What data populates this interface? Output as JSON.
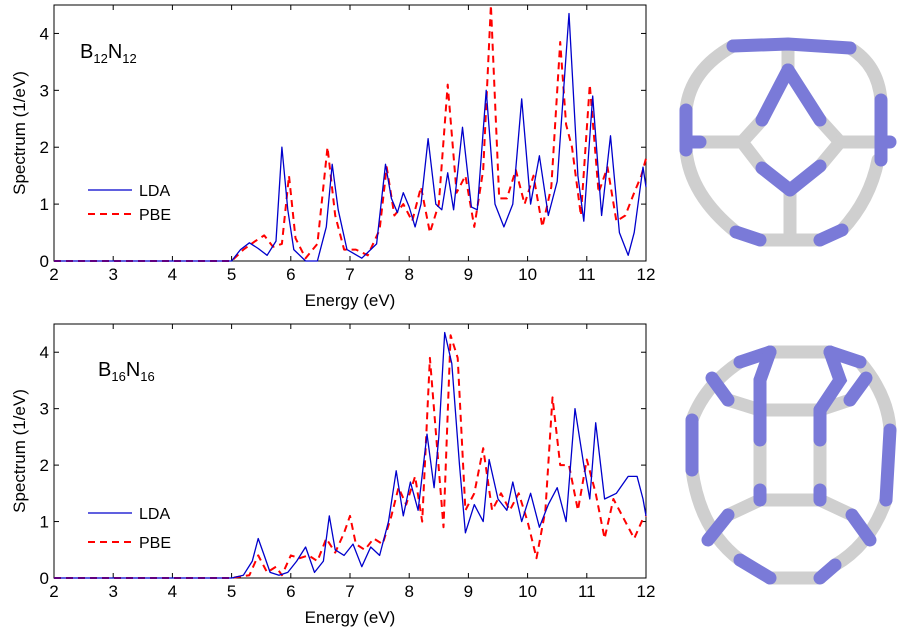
{
  "chart_data": [
    {
      "type": "line",
      "annotation": {
        "main1": "B",
        "sub1": "12",
        "main2": "N",
        "sub2": "12"
      },
      "xlabel": "Energy (eV)",
      "ylabel": "Spectrum (1/eV)",
      "xlim": [
        2,
        12
      ],
      "ylim": [
        0,
        4.5
      ],
      "x_ticks": [
        2,
        3,
        4,
        5,
        6,
        7,
        8,
        9,
        10,
        11,
        12
      ],
      "y_ticks": [
        0,
        1,
        2,
        3,
        4
      ],
      "legend_position": "left-middle",
      "series": [
        {
          "name": "LDA",
          "color": "#0000cc",
          "dash": "solid",
          "points": [
            [
              2,
              0
            ],
            [
              5.0,
              0
            ],
            [
              5.15,
              0.2
            ],
            [
              5.3,
              0.32
            ],
            [
              5.45,
              0.22
            ],
            [
              5.6,
              0.1
            ],
            [
              5.75,
              0.35
            ],
            [
              5.85,
              2.0
            ],
            [
              5.95,
              0.9
            ],
            [
              6.05,
              0.2
            ],
            [
              6.25,
              0
            ],
            [
              6.45,
              0
            ],
            [
              6.6,
              0.6
            ],
            [
              6.7,
              1.7
            ],
            [
              6.8,
              0.9
            ],
            [
              6.95,
              0.2
            ],
            [
              7.2,
              0.05
            ],
            [
              7.45,
              0.3
            ],
            [
              7.6,
              1.7
            ],
            [
              7.7,
              1.1
            ],
            [
              7.8,
              0.85
            ],
            [
              7.9,
              1.2
            ],
            [
              8.0,
              0.95
            ],
            [
              8.1,
              0.6
            ],
            [
              8.2,
              1.0
            ],
            [
              8.32,
              2.15
            ],
            [
              8.45,
              1.0
            ],
            [
              8.55,
              0.9
            ],
            [
              8.65,
              1.55
            ],
            [
              8.75,
              0.9
            ],
            [
              8.9,
              2.35
            ],
            [
              9.05,
              0.95
            ],
            [
              9.15,
              0.9
            ],
            [
              9.3,
              3.0
            ],
            [
              9.45,
              1.0
            ],
            [
              9.6,
              0.6
            ],
            [
              9.75,
              1.0
            ],
            [
              9.9,
              2.85
            ],
            [
              10.05,
              1.0
            ],
            [
              10.2,
              1.85
            ],
            [
              10.35,
              0.8
            ],
            [
              10.5,
              1.4
            ],
            [
              10.7,
              4.35
            ],
            [
              10.85,
              1.5
            ],
            [
              10.95,
              0.7
            ],
            [
              11.1,
              2.9
            ],
            [
              11.25,
              0.8
            ],
            [
              11.4,
              2.2
            ],
            [
              11.55,
              0.5
            ],
            [
              11.7,
              0.1
            ],
            [
              11.8,
              0.5
            ],
            [
              11.95,
              1.65
            ],
            [
              12.0,
              1.3
            ]
          ]
        },
        {
          "name": "PBE",
          "color": "#ff0000",
          "dash": "dashed",
          "points": [
            [
              2,
              0
            ],
            [
              5.0,
              0
            ],
            [
              5.2,
              0.2
            ],
            [
              5.4,
              0.35
            ],
            [
              5.55,
              0.45
            ],
            [
              5.7,
              0.25
            ],
            [
              5.85,
              0.3
            ],
            [
              5.97,
              1.5
            ],
            [
              6.08,
              0.4
            ],
            [
              6.25,
              0.05
            ],
            [
              6.45,
              0.3
            ],
            [
              6.62,
              2.0
            ],
            [
              6.75,
              0.8
            ],
            [
              6.9,
              0.2
            ],
            [
              7.1,
              0.2
            ],
            [
              7.3,
              0.1
            ],
            [
              7.5,
              0.55
            ],
            [
              7.62,
              1.65
            ],
            [
              7.75,
              0.8
            ],
            [
              7.9,
              1.0
            ],
            [
              8.05,
              0.7
            ],
            [
              8.2,
              1.3
            ],
            [
              8.35,
              0.5
            ],
            [
              8.5,
              1.0
            ],
            [
              8.65,
              3.1
            ],
            [
              8.8,
              1.2
            ],
            [
              8.95,
              1.5
            ],
            [
              9.1,
              0.6
            ],
            [
              9.25,
              1.6
            ],
            [
              9.38,
              4.5
            ],
            [
              9.52,
              1.1
            ],
            [
              9.65,
              1.1
            ],
            [
              9.8,
              1.6
            ],
            [
              9.95,
              1.0
            ],
            [
              10.1,
              1.5
            ],
            [
              10.25,
              0.6
            ],
            [
              10.4,
              1.3
            ],
            [
              10.55,
              3.85
            ],
            [
              10.65,
              2.4
            ],
            [
              10.75,
              2.0
            ],
            [
              10.9,
              0.8
            ],
            [
              11.05,
              3.1
            ],
            [
              11.2,
              1.2
            ],
            [
              11.35,
              1.65
            ],
            [
              11.5,
              0.7
            ],
            [
              11.65,
              0.8
            ],
            [
              11.8,
              1.2
            ],
            [
              11.92,
              1.5
            ],
            [
              12.0,
              1.8
            ]
          ]
        }
      ]
    },
    {
      "type": "line",
      "annotation": {
        "main1": "B",
        "sub1": "16",
        "main2": "N",
        "sub2": "16"
      },
      "xlabel": "Energy (eV)",
      "ylabel": "Spectrum (1/eV)",
      "xlim": [
        2,
        12
      ],
      "ylim": [
        0,
        4.5
      ],
      "x_ticks": [
        2,
        3,
        4,
        5,
        6,
        7,
        8,
        9,
        10,
        11,
        12
      ],
      "y_ticks": [
        0,
        1,
        2,
        3,
        4
      ],
      "legend_position": "left-middle",
      "series": [
        {
          "name": "LDA",
          "color": "#0000cc",
          "dash": "solid",
          "points": [
            [
              2,
              0
            ],
            [
              5.0,
              0
            ],
            [
              5.2,
              0.05
            ],
            [
              5.35,
              0.3
            ],
            [
              5.45,
              0.7
            ],
            [
              5.55,
              0.4
            ],
            [
              5.65,
              0.1
            ],
            [
              5.8,
              0.05
            ],
            [
              5.95,
              0.1
            ],
            [
              6.1,
              0.3
            ],
            [
              6.25,
              0.55
            ],
            [
              6.4,
              0.1
            ],
            [
              6.55,
              0.3
            ],
            [
              6.65,
              1.1
            ],
            [
              6.75,
              0.5
            ],
            [
              6.9,
              0.4
            ],
            [
              7.05,
              0.6
            ],
            [
              7.2,
              0.2
            ],
            [
              7.35,
              0.55
            ],
            [
              7.5,
              0.4
            ],
            [
              7.65,
              1.0
            ],
            [
              7.78,
              1.9
            ],
            [
              7.9,
              1.1
            ],
            [
              8.02,
              1.7
            ],
            [
              8.15,
              1.2
            ],
            [
              8.3,
              2.55
            ],
            [
              8.42,
              1.6
            ],
            [
              8.5,
              2.5
            ],
            [
              8.6,
              4.35
            ],
            [
              8.72,
              3.8
            ],
            [
              8.85,
              2.0
            ],
            [
              8.95,
              0.8
            ],
            [
              9.1,
              1.3
            ],
            [
              9.25,
              1.0
            ],
            [
              9.35,
              2.1
            ],
            [
              9.5,
              1.4
            ],
            [
              9.65,
              1.2
            ],
            [
              9.75,
              1.7
            ],
            [
              9.9,
              1.0
            ],
            [
              10.05,
              1.5
            ],
            [
              10.2,
              0.9
            ],
            [
              10.35,
              1.3
            ],
            [
              10.5,
              1.6
            ],
            [
              10.65,
              1.0
            ],
            [
              10.8,
              3.0
            ],
            [
              10.95,
              2.0
            ],
            [
              11.05,
              1.4
            ],
            [
              11.15,
              2.75
            ],
            [
              11.3,
              1.4
            ],
            [
              11.5,
              1.5
            ],
            [
              11.7,
              1.8
            ],
            [
              11.85,
              1.8
            ],
            [
              11.95,
              1.4
            ],
            [
              12.0,
              1.1
            ]
          ]
        },
        {
          "name": "PBE",
          "color": "#ff0000",
          "dash": "dashed",
          "points": [
            [
              2,
              0
            ],
            [
              5.0,
              0
            ],
            [
              5.3,
              0.05
            ],
            [
              5.45,
              0.4
            ],
            [
              5.6,
              0.1
            ],
            [
              5.75,
              0.2
            ],
            [
              5.85,
              0.05
            ],
            [
              6.0,
              0.4
            ],
            [
              6.15,
              0.35
            ],
            [
              6.3,
              0.4
            ],
            [
              6.45,
              0.3
            ],
            [
              6.6,
              0.7
            ],
            [
              6.75,
              0.45
            ],
            [
              6.9,
              0.8
            ],
            [
              7.0,
              1.1
            ],
            [
              7.1,
              0.6
            ],
            [
              7.25,
              0.5
            ],
            [
              7.4,
              0.7
            ],
            [
              7.55,
              0.6
            ],
            [
              7.7,
              1.1
            ],
            [
              7.82,
              1.6
            ],
            [
              7.95,
              1.3
            ],
            [
              8.1,
              1.8
            ],
            [
              8.22,
              1.0
            ],
            [
              8.35,
              3.9
            ],
            [
              8.48,
              2.2
            ],
            [
              8.58,
              0.9
            ],
            [
              8.7,
              4.3
            ],
            [
              8.82,
              3.9
            ],
            [
              8.95,
              1.2
            ],
            [
              9.1,
              1.5
            ],
            [
              9.25,
              2.3
            ],
            [
              9.4,
              1.2
            ],
            [
              9.55,
              1.5
            ],
            [
              9.7,
              1.2
            ],
            [
              9.85,
              1.5
            ],
            [
              10.0,
              1.0
            ],
            [
              10.15,
              0.35
            ],
            [
              10.3,
              1.2
            ],
            [
              10.42,
              3.2
            ],
            [
              10.55,
              2.0
            ],
            [
              10.7,
              2.0
            ],
            [
              10.85,
              1.2
            ],
            [
              11.0,
              2.1
            ],
            [
              11.15,
              1.5
            ],
            [
              11.3,
              0.7
            ],
            [
              11.45,
              1.4
            ],
            [
              11.6,
              1.1
            ],
            [
              11.8,
              0.7
            ],
            [
              11.95,
              1.05
            ],
            [
              12.0,
              1.1
            ]
          ]
        }
      ]
    }
  ],
  "molecules": [
    {
      "name": "B12N12 cage structure",
      "boron_color": "#cfcfcf",
      "nitrogen_color": "#7a7ad8"
    },
    {
      "name": "B16N16 cage structure",
      "boron_color": "#cfcfcf",
      "nitrogen_color": "#7a7ad8"
    }
  ]
}
